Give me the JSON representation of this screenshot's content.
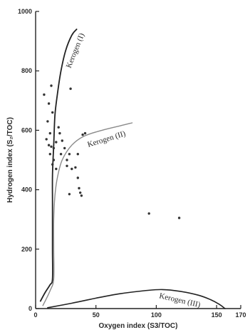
{
  "chart_data": {
    "type": "scatter",
    "title": "",
    "xlabel": "Oxygen index (S3/TOC)",
    "ylabel": "Hydrogen  index (S₂/TOC)",
    "xlim": [
      0,
      170
    ],
    "ylim": [
      0,
      1000
    ],
    "x_ticks": [
      0,
      50,
      100,
      150,
      170
    ],
    "x_tick_labels": [
      "0",
      "50",
      "100",
      "150",
      "170"
    ],
    "y_ticks": [
      0,
      200,
      400,
      600,
      800,
      1000
    ],
    "y_tick_labels": [
      "0",
      "200",
      "400",
      "600",
      "800",
      "1000"
    ],
    "grid": false,
    "legend": "none",
    "points": [
      {
        "x": 7,
        "y": 720
      },
      {
        "x": 11,
        "y": 690
      },
      {
        "x": 13,
        "y": 750
      },
      {
        "x": 14,
        "y": 660
      },
      {
        "x": 10,
        "y": 630
      },
      {
        "x": 12,
        "y": 590
      },
      {
        "x": 9,
        "y": 570
      },
      {
        "x": 11,
        "y": 550
      },
      {
        "x": 13,
        "y": 545
      },
      {
        "x": 15,
        "y": 540
      },
      {
        "x": 17,
        "y": 560
      },
      {
        "x": 12,
        "y": 520
      },
      {
        "x": 15,
        "y": 500
      },
      {
        "x": 14,
        "y": 485
      },
      {
        "x": 17,
        "y": 470
      },
      {
        "x": 19,
        "y": 610
      },
      {
        "x": 20,
        "y": 590
      },
      {
        "x": 22,
        "y": 565
      },
      {
        "x": 24,
        "y": 540
      },
      {
        "x": 21,
        "y": 520
      },
      {
        "x": 26,
        "y": 500
      },
      {
        "x": 28,
        "y": 520
      },
      {
        "x": 29,
        "y": 740
      },
      {
        "x": 26,
        "y": 480
      },
      {
        "x": 30,
        "y": 470
      },
      {
        "x": 28,
        "y": 385
      },
      {
        "x": 33,
        "y": 475
      },
      {
        "x": 35,
        "y": 520
      },
      {
        "x": 35,
        "y": 440
      },
      {
        "x": 36,
        "y": 405
      },
      {
        "x": 37,
        "y": 390
      },
      {
        "x": 38,
        "y": 380
      },
      {
        "x": 39,
        "y": 585
      },
      {
        "x": 41,
        "y": 590
      },
      {
        "x": 94,
        "y": 320
      },
      {
        "x": 119,
        "y": 305
      }
    ],
    "curves": [
      {
        "name": "Kerogen (I)",
        "label": "Kerogen (I)",
        "color": "#222222",
        "points": [
          [
            4,
            25
          ],
          [
            8,
            55
          ],
          [
            12,
            80
          ],
          [
            14,
            100
          ],
          [
            14,
            200
          ],
          [
            14,
            350
          ],
          [
            14,
            450
          ],
          [
            15,
            550
          ],
          [
            16,
            650
          ],
          [
            18,
            720
          ],
          [
            21,
            800
          ],
          [
            25,
            870
          ],
          [
            30,
            920
          ],
          [
            34,
            940
          ]
        ]
      },
      {
        "name": "Kerogen (II)",
        "label": "Kerogen (II)",
        "color": "#8a8a8a",
        "points": [
          [
            6,
            10
          ],
          [
            12,
            60
          ],
          [
            15,
            100
          ],
          [
            15,
            200
          ],
          [
            15,
            300
          ],
          [
            16,
            380
          ],
          [
            18,
            440
          ],
          [
            22,
            500
          ],
          [
            30,
            550
          ],
          [
            40,
            580
          ],
          [
            55,
            600
          ],
          [
            70,
            615
          ],
          [
            80,
            625
          ]
        ]
      },
      {
        "name": "Kerogen (III)",
        "label": "Kerogen (III)",
        "color": "#222222",
        "points": [
          [
            10,
            3
          ],
          [
            30,
            18
          ],
          [
            50,
            35
          ],
          [
            70,
            50
          ],
          [
            90,
            60
          ],
          [
            105,
            64
          ],
          [
            120,
            58
          ],
          [
            135,
            45
          ],
          [
            145,
            30
          ],
          [
            152,
            15
          ],
          [
            157,
            0
          ]
        ]
      }
    ]
  }
}
